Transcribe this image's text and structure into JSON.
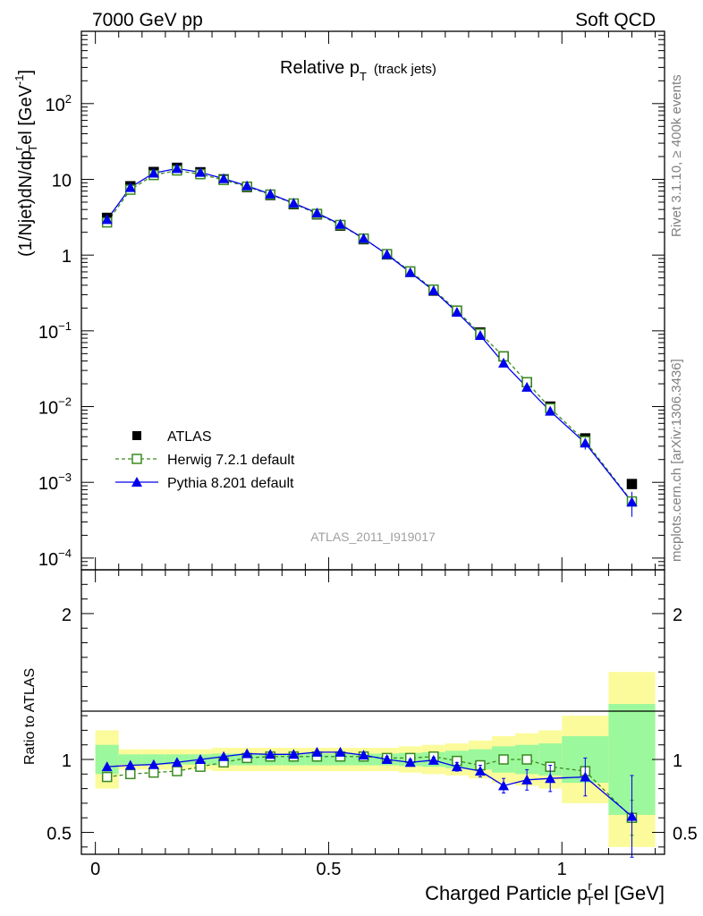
{
  "header": {
    "left": "7000 GeV pp",
    "right": "Soft QCD"
  },
  "side_labels": {
    "rivet": "Rivet 3.1.10, ≥ 400k events",
    "mcplots": "mcplots.cern.ch [arXiv:1306.3436]"
  },
  "colors": {
    "data": "#000000",
    "herwig": "#3a8a1f",
    "pythia": "#0000ee",
    "band_inner": "#9cf89c",
    "band_outer": "#fbfb9c"
  },
  "chart_data": [
    {
      "type": "scatter",
      "title": "Relative p",
      "title_sub": "T",
      "title_suffix": "(track jets)",
      "analysis_tag": "ATLAS_2011_I919017",
      "ylabel_parts": {
        "a": "(1/Njet)dN/dp",
        "b": "r",
        "c": "T",
        "d": "el [GeV",
        "e": "-1",
        "f": "]"
      },
      "yscale": "log",
      "ylim": [
        7e-05,
        900
      ],
      "xlim": [
        -0.03,
        1.22
      ],
      "y_ticklabels": [
        {
          "v": 100,
          "m": "10",
          "e": "2"
        },
        {
          "v": 10,
          "m": "10",
          "e": ""
        },
        {
          "v": 1,
          "m": "1",
          "e": ""
        },
        {
          "v": 0.1,
          "m": "10",
          "e": "−1"
        },
        {
          "v": 0.01,
          "m": "10",
          "e": "−2"
        },
        {
          "v": 0.001,
          "m": "10",
          "e": "−3"
        },
        {
          "v": 0.0001,
          "m": "10",
          "e": "−4"
        }
      ],
      "legend": {
        "placement": "lower-left",
        "entries": [
          "ATLAS",
          "Herwig 7.2.1 default",
          "Pythia 8.201 default"
        ]
      },
      "x": [
        0.025,
        0.075,
        0.125,
        0.175,
        0.225,
        0.275,
        0.325,
        0.375,
        0.425,
        0.475,
        0.525,
        0.575,
        0.625,
        0.675,
        0.725,
        0.775,
        0.825,
        0.875,
        0.925,
        0.975,
        1.05,
        1.15
      ],
      "series": [
        {
          "name": "ATLAS",
          "marker": "square-filled",
          "color": "#000000",
          "values": [
            3.1,
            8.1,
            12.5,
            14.2,
            12.4,
            10.0,
            7.9,
            6.2,
            4.7,
            3.45,
            2.45,
            1.62,
            1.02,
            0.6,
            0.34,
            0.185,
            0.095,
            0.046,
            0.021,
            0.01,
            0.0038,
            0.00095
          ]
        },
        {
          "name": "Herwig 7.2.1 default",
          "marker": "square-open",
          "dashed": true,
          "color": "#3a8a1f",
          "values": [
            2.7,
            7.3,
            11.4,
            13.1,
            11.7,
            9.8,
            8.0,
            6.3,
            4.8,
            3.5,
            2.5,
            1.65,
            1.03,
            0.61,
            0.35,
            0.185,
            0.092,
            0.046,
            0.021,
            0.0095,
            0.0035,
            0.00056
          ]
        },
        {
          "name": "Pythia 8.201 default",
          "marker": "triangle-filled",
          "color": "#0000ee",
          "values": [
            2.95,
            7.8,
            12.1,
            13.9,
            12.4,
            10.2,
            8.2,
            6.4,
            4.85,
            3.6,
            2.55,
            1.66,
            1.02,
            0.59,
            0.34,
            0.176,
            0.087,
            0.0375,
            0.018,
            0.0087,
            0.0033,
            0.00055
          ]
        }
      ],
      "errors": [
        0,
        0,
        0,
        0,
        0,
        0,
        0,
        0,
        0,
        0,
        0,
        0,
        0,
        0,
        0,
        0,
        0,
        0,
        0,
        0,
        0.0006,
        0.0002
      ]
    },
    {
      "type": "scatter",
      "ylabel": "Ratio to ATLAS",
      "xlabel_parts": {
        "a": "Charged Particle p",
        "b": "r",
        "c": "T",
        "d": "el [GeV]"
      },
      "ylim": [
        0.35,
        2.3
      ],
      "xlim": [
        -0.03,
        1.22
      ],
      "y_ticks": [
        0.5,
        1,
        2
      ],
      "y_ticklabels": [
        "0.5",
        "1",
        "2"
      ],
      "x_ticks": [
        0,
        0.5,
        1
      ],
      "x_ticklabels": [
        "0",
        "0.5",
        "1"
      ],
      "bins": [
        [
          0,
          0.05
        ],
        [
          0.05,
          0.1
        ],
        [
          0.1,
          0.15
        ],
        [
          0.15,
          0.2
        ],
        [
          0.2,
          0.25
        ],
        [
          0.25,
          0.3
        ],
        [
          0.3,
          0.35
        ],
        [
          0.35,
          0.4
        ],
        [
          0.4,
          0.45
        ],
        [
          0.45,
          0.5
        ],
        [
          0.5,
          0.55
        ],
        [
          0.55,
          0.6
        ],
        [
          0.6,
          0.65
        ],
        [
          0.65,
          0.7
        ],
        [
          0.7,
          0.75
        ],
        [
          0.75,
          0.8
        ],
        [
          0.8,
          0.85
        ],
        [
          0.85,
          0.9
        ],
        [
          0.9,
          0.95
        ],
        [
          0.95,
          1.0
        ],
        [
          1.0,
          1.1
        ],
        [
          1.1,
          1.2
        ]
      ],
      "band_outer": [
        0.2,
        0.07,
        0.07,
        0.07,
        0.07,
        0.08,
        0.08,
        0.08,
        0.08,
        0.08,
        0.08,
        0.08,
        0.08,
        0.09,
        0.1,
        0.11,
        0.13,
        0.16,
        0.18,
        0.2,
        0.3,
        0.6
      ],
      "band_inner": [
        0.1,
        0.035,
        0.035,
        0.035,
        0.035,
        0.04,
        0.04,
        0.04,
        0.04,
        0.04,
        0.04,
        0.04,
        0.04,
        0.045,
        0.05,
        0.06,
        0.07,
        0.09,
        0.1,
        0.11,
        0.16,
        0.38
      ],
      "series": [
        {
          "name": "Herwig 7.2.1 default",
          "color": "#3a8a1f",
          "values": [
            0.88,
            0.9,
            0.91,
            0.92,
            0.95,
            0.98,
            1.01,
            1.02,
            1.02,
            1.02,
            1.02,
            1.02,
            1.01,
            1.01,
            1.02,
            0.99,
            0.96,
            1.0,
            1.0,
            0.95,
            0.92,
            0.6
          ],
          "errors": [
            0,
            0,
            0,
            0,
            0,
            0,
            0,
            0,
            0,
            0,
            0,
            0,
            0,
            0,
            0,
            0,
            0,
            0,
            0,
            0.02,
            0.03,
            0.12
          ]
        },
        {
          "name": "Pythia 8.201 default",
          "color": "#0000ee",
          "values": [
            0.95,
            0.96,
            0.965,
            0.98,
            1.0,
            1.02,
            1.04,
            1.035,
            1.035,
            1.05,
            1.05,
            1.03,
            1.0,
            0.98,
            0.995,
            0.95,
            0.92,
            0.82,
            0.86,
            0.87,
            0.88,
            0.61
          ],
          "errors": [
            0,
            0,
            0,
            0,
            0,
            0,
            0,
            0.01,
            0.01,
            0.01,
            0.01,
            0.015,
            0.02,
            0.02,
            0.02,
            0.03,
            0.04,
            0.05,
            0.07,
            0.09,
            0.13,
            0.28
          ]
        }
      ]
    }
  ]
}
